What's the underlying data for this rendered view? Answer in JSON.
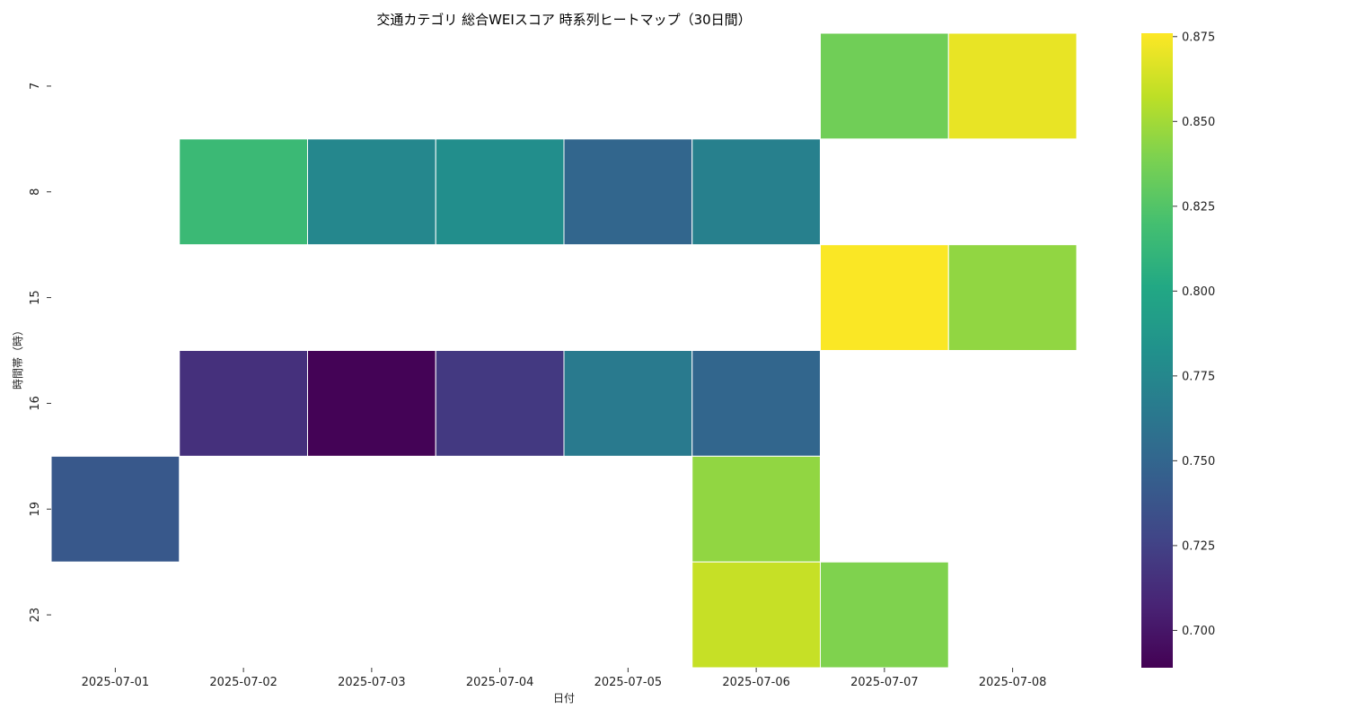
{
  "chart_data": {
    "type": "heatmap",
    "title": "交通カテゴリ 総合WEIスコア 時系列ヒートマップ（30日間）",
    "xlabel": "日付",
    "ylabel": "時間帯（時）",
    "x_categories": [
      "2025-07-01",
      "2025-07-02",
      "2025-07-03",
      "2025-07-04",
      "2025-07-05",
      "2025-07-06",
      "2025-07-07",
      "2025-07-08"
    ],
    "y_categories": [
      "7",
      "8",
      "15",
      "16",
      "19",
      "23"
    ],
    "values": [
      [
        null,
        null,
        null,
        null,
        null,
        null,
        0.835,
        0.87
      ],
      [
        null,
        0.815,
        0.775,
        0.78,
        0.75,
        0.77,
        null,
        null
      ],
      [
        null,
        null,
        null,
        null,
        null,
        null,
        0.875,
        0.845
      ],
      [
        null,
        0.715,
        0.69,
        0.72,
        0.765,
        0.75,
        null,
        null
      ],
      [
        0.74,
        null,
        null,
        null,
        null,
        0.845,
        null,
        null
      ],
      [
        null,
        null,
        null,
        null,
        null,
        0.86,
        0.84,
        null
      ]
    ],
    "colormap": "viridis",
    "colorbar": {
      "range": [
        0.689,
        0.876
      ],
      "ticks": [
        "0.700",
        "0.725",
        "0.750",
        "0.775",
        "0.800",
        "0.825",
        "0.850",
        "0.875"
      ]
    }
  }
}
